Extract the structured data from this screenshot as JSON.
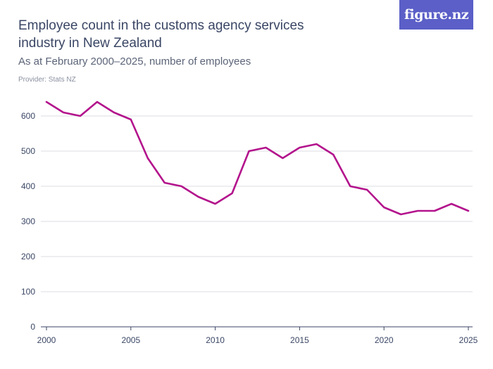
{
  "header": {
    "title": "Employee count in the customs agency services industry in New Zealand",
    "subtitle": "As at February 2000–2025, number of employees",
    "provider": "Provider: Stats NZ",
    "logo_text": "figure.nz"
  },
  "colors": {
    "line": "#b3138c",
    "grid": "#dcdde3",
    "axis": "#3a4665",
    "logo_bg": "#5b5fc7"
  },
  "chart_data": {
    "type": "line",
    "title": "Employee count in the customs agency services industry in New Zealand",
    "subtitle": "As at February 2000–2025, number of employees",
    "xlabel": "",
    "ylabel": "",
    "x": [
      2000,
      2001,
      2002,
      2003,
      2004,
      2005,
      2006,
      2007,
      2008,
      2009,
      2010,
      2011,
      2012,
      2013,
      2014,
      2015,
      2016,
      2017,
      2018,
      2019,
      2020,
      2021,
      2022,
      2023,
      2024,
      2025
    ],
    "series": [
      {
        "values": [
          640,
          610,
          600,
          640,
          610,
          590,
          480,
          410,
          400,
          370,
          350,
          380,
          500,
          510,
          480,
          510,
          520,
          490,
          400,
          390,
          340,
          320,
          330,
          330,
          350,
          330
        ]
      }
    ],
    "xlim": [
      2000,
      2025
    ],
    "ylim": [
      0,
      650
    ],
    "x_ticks": [
      "2000",
      "2005",
      "2010",
      "2015",
      "2020",
      "2025"
    ],
    "y_ticks": [
      "0",
      "100",
      "200",
      "300",
      "400",
      "500",
      "600"
    ],
    "grid": true,
    "legend": "none"
  }
}
